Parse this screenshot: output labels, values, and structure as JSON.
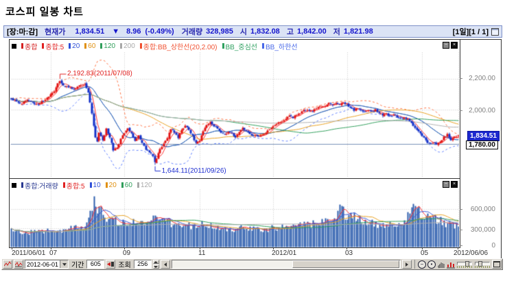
{
  "title": "코스피 일봉 차트",
  "info_bar": {
    "market_state": "[장:마:감]",
    "price_label": "현재가",
    "price": "1,834.51",
    "direction_icon": "▼",
    "change": "8.96",
    "change_pct": "(-0.49%)",
    "volume_label": "거래량",
    "volume": "328,985",
    "open_label": "시",
    "open": "1,832.08",
    "high_label": "고",
    "high": "1,842.00",
    "low_label": "저",
    "low": "1,821.98",
    "page_info": "[1일][1 / 1]"
  },
  "price_pane": {
    "legend": [
      {
        "label": "종합",
        "color": "#d42020"
      },
      {
        "label": "종합:5",
        "color": "#e02020"
      },
      {
        "label": "20",
        "color": "#3050d8"
      },
      {
        "label": "60",
        "color": "#e09010"
      },
      {
        "label": "120",
        "color": "#2f9e5a"
      },
      {
        "label": "200",
        "color": "#a8a8a8"
      },
      {
        "label": "종합:BB_상한선(20,2.00)",
        "color": "#f05030"
      },
      {
        "label": "BB_중심선",
        "color": "#2fa060"
      },
      {
        "label": "BB_하한선",
        "color": "#4868e8"
      }
    ],
    "axis_labels": [
      "2,200.00",
      "2,000.00"
    ],
    "price_marker": "1,834.51",
    "line_marker": "1,780.00",
    "annotation_high": "2,192.83(2011/07/08)",
    "annotation_low": "1,644.11(2011/09/26)"
  },
  "volume_pane": {
    "legend": [
      {
        "label": "종합:거래량",
        "color": "#283890"
      },
      {
        "label": "종합:5",
        "color": "#e02020"
      },
      {
        "label": "10",
        "color": "#3050d8"
      },
      {
        "label": "20",
        "color": "#e09010"
      },
      {
        "label": "60",
        "color": "#2f9e5a"
      },
      {
        "label": "120",
        "color": "#a8a8a8"
      }
    ],
    "axis_labels": [
      "600,000",
      "300,000",
      "0"
    ]
  },
  "x_axis": [
    "2011/06/01",
    "07",
    "09",
    "11",
    "2012/01",
    "03",
    "05",
    "2012/06/06"
  ],
  "toolbar": {
    "date_value": "2012-06-01",
    "period_label": "기간",
    "period_value": "605",
    "query_label": "조회",
    "count_value": "256"
  },
  "chart_data": {
    "type": "candlestick+volume",
    "title": "코스피 일봉 차트 (KOSPI daily candles with MA 5/20/60/120/200, Bollinger bands, volume with MA 5/10/20/60/120)",
    "x_range": [
      "2011/06/01",
      "2012/06/06"
    ],
    "days": 250,
    "price_axis_ticks": [
      2200,
      2000
    ],
    "volume_axis_ticks": [
      600000,
      300000,
      0
    ],
    "hline_price": 1780.0,
    "last_bar": {
      "open": 1832.08,
      "high": 1842.0,
      "low": 1821.98,
      "close": 1834.51,
      "volume": 328985,
      "change": -8.96,
      "change_pct": -0.49
    },
    "high_point": {
      "value": 2192.83,
      "date": "2011/07/08",
      "day": 27
    },
    "low_point": {
      "value": 1644.11,
      "date": "2011/09/26",
      "day": 80
    },
    "month_ticks_days": [
      0,
      22,
      63,
      105,
      146,
      187,
      229,
      249
    ],
    "price_ma_windows": [
      5,
      20,
      60,
      120,
      200
    ],
    "price_ma_colors": [
      "#ff3030",
      "#3858d8",
      "#e8a020",
      "#2f9e5a",
      "#b0b0b0"
    ],
    "bollinger": {
      "window": 20,
      "mult": 2,
      "upper_color": "#ff7040",
      "center_color": "#45b070",
      "lower_color": "#6080ff"
    },
    "volume_ma_windows": [
      5,
      10,
      20,
      60,
      120
    ],
    "volume_ma_colors": [
      "#ff3030",
      "#3858d8",
      "#e8a020",
      "#2f9e5a",
      "#b0b0b0"
    ],
    "candle_up_color": "#e31212",
    "candle_down_color": "#1430c8",
    "volume_bar_color": "#2e5fae",
    "grid_color": "#c4c4c4",
    "hline_color": "#7890b8",
    "price_anchors": [
      [
        0,
        2075
      ],
      [
        3,
        2055
      ],
      [
        6,
        2042
      ],
      [
        9,
        2065
      ],
      [
        12,
        2048
      ],
      [
        15,
        2032
      ],
      [
        18,
        2060
      ],
      [
        21,
        2088
      ],
      [
        24,
        2125
      ],
      [
        27,
        2190
      ],
      [
        29,
        2162
      ],
      [
        32,
        2148
      ],
      [
        35,
        2132
      ],
      [
        38,
        2158
      ],
      [
        41,
        2172
      ],
      [
        43,
        2120
      ],
      [
        45,
        1975
      ],
      [
        47,
        1825
      ],
      [
        48,
        1792
      ],
      [
        49,
        1848
      ],
      [
        51,
        1808
      ],
      [
        53,
        1878
      ],
      [
        55,
        1815
      ],
      [
        57,
        1745
      ],
      [
        59,
        1755
      ],
      [
        61,
        1812
      ],
      [
        63,
        1855
      ],
      [
        65,
        1878
      ],
      [
        67,
        1848
      ],
      [
        69,
        1802
      ],
      [
        71,
        1838
      ],
      [
        73,
        1788
      ],
      [
        75,
        1748
      ],
      [
        77,
        1732
      ],
      [
        79,
        1705
      ],
      [
        80,
        1655
      ],
      [
        81,
        1685
      ],
      [
        83,
        1752
      ],
      [
        85,
        1782
      ],
      [
        87,
        1822
      ],
      [
        89,
        1880
      ],
      [
        91,
        1858
      ],
      [
        93,
        1822
      ],
      [
        95,
        1872
      ],
      [
        97,
        1902
      ],
      [
        99,
        1868
      ],
      [
        101,
        1832
      ],
      [
        103,
        1782
      ],
      [
        105,
        1802
      ],
      [
        107,
        1862
      ],
      [
        109,
        1902
      ],
      [
        111,
        1922
      ],
      [
        113,
        1898
      ],
      [
        115,
        1878
      ],
      [
        117,
        1852
      ],
      [
        119,
        1842
      ],
      [
        121,
        1862
      ],
      [
        123,
        1845
      ],
      [
        125,
        1828
      ],
      [
        127,
        1855
      ],
      [
        129,
        1882
      ],
      [
        131,
        1865
      ],
      [
        133,
        1845
      ],
      [
        135,
        1838
      ],
      [
        137,
        1825
      ],
      [
        139,
        1832
      ],
      [
        141,
        1845
      ],
      [
        143,
        1868
      ],
      [
        145,
        1888
      ],
      [
        147,
        1902
      ],
      [
        149,
        1915
      ],
      [
        151,
        1932
      ],
      [
        153,
        1945
      ],
      [
        155,
        1962
      ],
      [
        157,
        1950
      ],
      [
        159,
        1968
      ],
      [
        161,
        1982
      ],
      [
        163,
        1995
      ],
      [
        165,
        2005
      ],
      [
        167,
        1992
      ],
      [
        169,
        2002
      ],
      [
        171,
        2015
      ],
      [
        173,
        2025
      ],
      [
        175,
        2032
      ],
      [
        177,
        2042
      ],
      [
        179,
        2035
      ],
      [
        181,
        2048
      ],
      [
        183,
        2032
      ],
      [
        185,
        2052
      ],
      [
        187,
        2038
      ],
      [
        189,
        2018
      ],
      [
        191,
        2002
      ],
      [
        193,
        2012
      ],
      [
        195,
        1995
      ],
      [
        197,
        1988
      ],
      [
        199,
        2002
      ],
      [
        201,
        1992
      ],
      [
        203,
        1998
      ],
      [
        205,
        1982
      ],
      [
        207,
        1968
      ],
      [
        209,
        1978
      ],
      [
        211,
        1962
      ],
      [
        213,
        1972
      ],
      [
        215,
        1958
      ],
      [
        217,
        1948
      ],
      [
        219,
        1952
      ],
      [
        221,
        1938
      ],
      [
        223,
        1912
      ],
      [
        225,
        1882
      ],
      [
        227,
        1858
      ],
      [
        229,
        1832
      ],
      [
        231,
        1806
      ],
      [
        233,
        1782
      ],
      [
        235,
        1792
      ],
      [
        237,
        1778
      ],
      [
        239,
        1796
      ],
      [
        241,
        1822
      ],
      [
        243,
        1842
      ],
      [
        245,
        1802
      ],
      [
        247,
        1828
      ],
      [
        249,
        1834.51
      ]
    ],
    "volume_anchors": [
      [
        0,
        260000
      ],
      [
        10,
        230000
      ],
      [
        20,
        250000
      ],
      [
        30,
        285000
      ],
      [
        40,
        330000
      ],
      [
        44,
        520000
      ],
      [
        46,
        750000
      ],
      [
        48,
        640000
      ],
      [
        52,
        500000
      ],
      [
        56,
        430000
      ],
      [
        60,
        400000
      ],
      [
        65,
        380000
      ],
      [
        70,
        420000
      ],
      [
        75,
        390000
      ],
      [
        80,
        450000
      ],
      [
        85,
        405000
      ],
      [
        90,
        380000
      ],
      [
        95,
        350000
      ],
      [
        100,
        330000
      ],
      [
        105,
        360000
      ],
      [
        110,
        340000
      ],
      [
        115,
        320000
      ],
      [
        120,
        300000
      ],
      [
        125,
        280000
      ],
      [
        130,
        310000
      ],
      [
        135,
        290000
      ],
      [
        140,
        270000
      ],
      [
        145,
        300000
      ],
      [
        150,
        320000
      ],
      [
        155,
        340000
      ],
      [
        160,
        360000
      ],
      [
        165,
        385000
      ],
      [
        170,
        360000
      ],
      [
        175,
        400000
      ],
      [
        180,
        455000
      ],
      [
        183,
        610000
      ],
      [
        186,
        520000
      ],
      [
        190,
        480000
      ],
      [
        195,
        420000
      ],
      [
        200,
        380000
      ],
      [
        205,
        355000
      ],
      [
        210,
        335000
      ],
      [
        215,
        380000
      ],
      [
        220,
        430000
      ],
      [
        224,
        700000
      ],
      [
        226,
        615000
      ],
      [
        230,
        450000
      ],
      [
        234,
        510000
      ],
      [
        238,
        420000
      ],
      [
        242,
        380000
      ],
      [
        246,
        350000
      ],
      [
        249,
        328985
      ]
    ]
  }
}
